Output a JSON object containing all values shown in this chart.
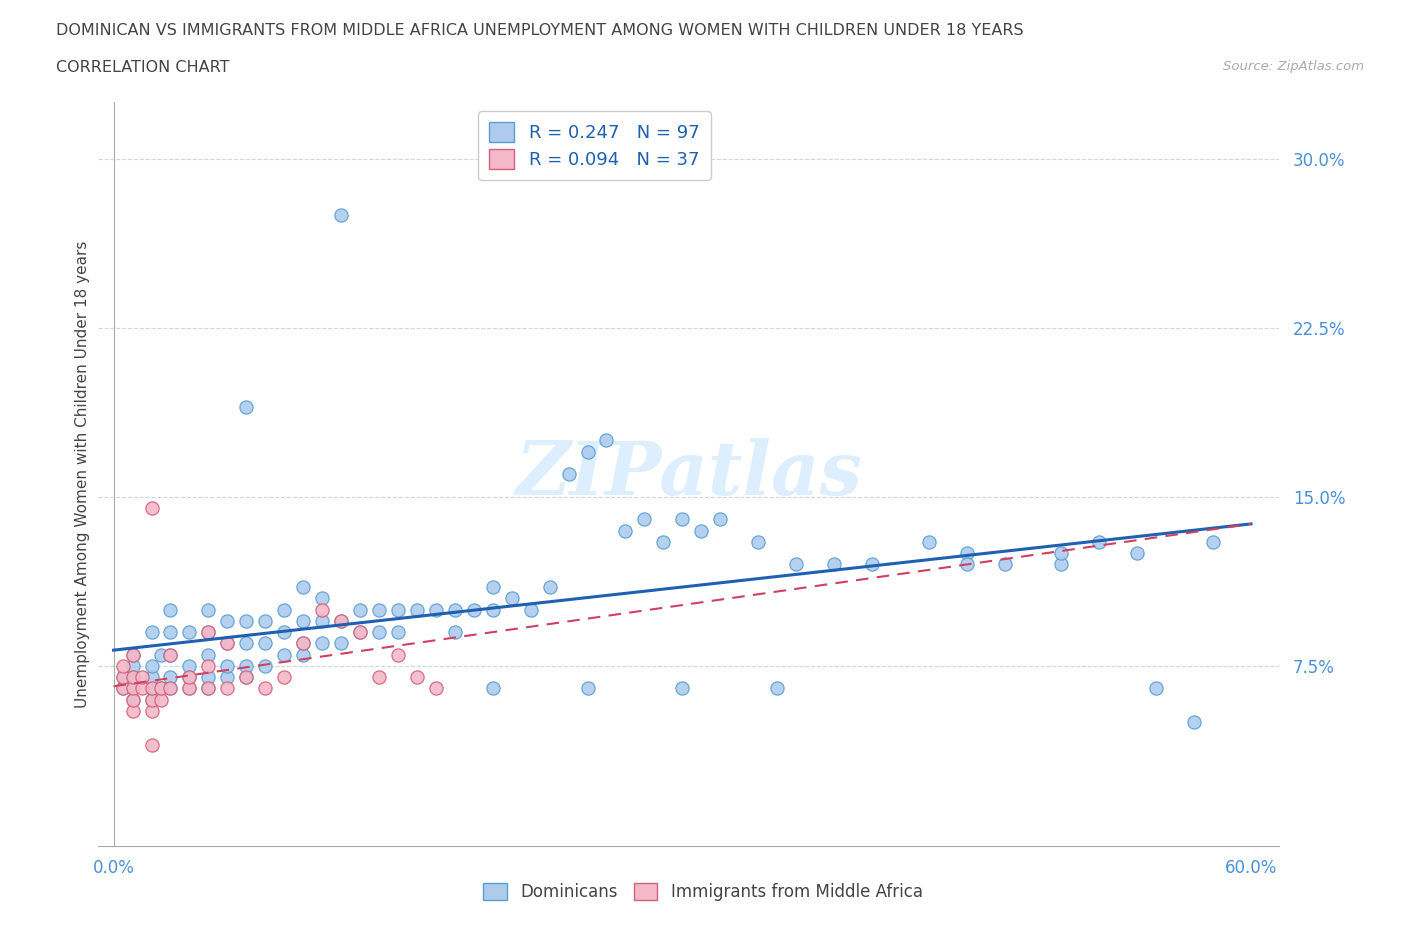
{
  "title_line1": "DOMINICAN VS IMMIGRANTS FROM MIDDLE AFRICA UNEMPLOYMENT AMONG WOMEN WITH CHILDREN UNDER 18 YEARS",
  "title_line2": "CORRELATION CHART",
  "source": "Source: ZipAtlas.com",
  "ylabel": "Unemployment Among Women with Children Under 18 years",
  "yticks": [
    "7.5%",
    "15.0%",
    "22.5%",
    "30.0%"
  ],
  "ytick_values": [
    0.075,
    0.15,
    0.225,
    0.3
  ],
  "xlim": [
    0.0,
    0.6
  ],
  "ylim": [
    0.0,
    0.32
  ],
  "color_dominican_fill": "#aecbee",
  "color_dominican_edge": "#5a9fd4",
  "color_immigrant_fill": "#f4b8c8",
  "color_immigrant_edge": "#d4607a",
  "color_line_dominican": "#2060b0",
  "color_line_immigrant": "#d04060",
  "watermark": "ZIPatlas",
  "dom_x": [
    0.005,
    0.005,
    0.01,
    0.01,
    0.01,
    0.01,
    0.01,
    0.02,
    0.02,
    0.02,
    0.02,
    0.02,
    0.025,
    0.025,
    0.03,
    0.03,
    0.03,
    0.03,
    0.03,
    0.04,
    0.04,
    0.04,
    0.04,
    0.05,
    0.05,
    0.05,
    0.05,
    0.05,
    0.06,
    0.06,
    0.06,
    0.06,
    0.07,
    0.07,
    0.07,
    0.07,
    0.07,
    0.08,
    0.08,
    0.08,
    0.09,
    0.09,
    0.09,
    0.1,
    0.1,
    0.1,
    0.1,
    0.11,
    0.11,
    0.11,
    0.12,
    0.12,
    0.12,
    0.13,
    0.13,
    0.14,
    0.14,
    0.15,
    0.15,
    0.16,
    0.17,
    0.18,
    0.18,
    0.19,
    0.2,
    0.2,
    0.21,
    0.22,
    0.23,
    0.24,
    0.25,
    0.26,
    0.27,
    0.28,
    0.29,
    0.3,
    0.31,
    0.32,
    0.34,
    0.36,
    0.38,
    0.4,
    0.43,
    0.45,
    0.47,
    0.5,
    0.52,
    0.54,
    0.55,
    0.57,
    0.58,
    0.2,
    0.25,
    0.3,
    0.35,
    0.45,
    0.5
  ],
  "dom_y": [
    0.065,
    0.07,
    0.06,
    0.065,
    0.07,
    0.075,
    0.08,
    0.06,
    0.065,
    0.07,
    0.075,
    0.09,
    0.065,
    0.08,
    0.065,
    0.07,
    0.08,
    0.09,
    0.1,
    0.065,
    0.07,
    0.075,
    0.09,
    0.065,
    0.07,
    0.08,
    0.09,
    0.1,
    0.07,
    0.075,
    0.085,
    0.095,
    0.07,
    0.075,
    0.085,
    0.095,
    0.19,
    0.075,
    0.085,
    0.095,
    0.08,
    0.09,
    0.1,
    0.08,
    0.085,
    0.095,
    0.11,
    0.085,
    0.095,
    0.105,
    0.085,
    0.095,
    0.275,
    0.09,
    0.1,
    0.09,
    0.1,
    0.09,
    0.1,
    0.1,
    0.1,
    0.09,
    0.1,
    0.1,
    0.1,
    0.11,
    0.105,
    0.1,
    0.11,
    0.16,
    0.17,
    0.175,
    0.135,
    0.14,
    0.13,
    0.14,
    0.135,
    0.14,
    0.13,
    0.12,
    0.12,
    0.12,
    0.13,
    0.125,
    0.12,
    0.12,
    0.13,
    0.125,
    0.065,
    0.05,
    0.13,
    0.065,
    0.065,
    0.065,
    0.065,
    0.12,
    0.125
  ],
  "imm_x": [
    0.005,
    0.005,
    0.005,
    0.01,
    0.01,
    0.01,
    0.01,
    0.01,
    0.015,
    0.015,
    0.02,
    0.02,
    0.02,
    0.02,
    0.025,
    0.025,
    0.03,
    0.03,
    0.04,
    0.04,
    0.05,
    0.05,
    0.05,
    0.06,
    0.06,
    0.07,
    0.08,
    0.09,
    0.1,
    0.11,
    0.12,
    0.13,
    0.14,
    0.15,
    0.16,
    0.17,
    0.02
  ],
  "imm_y": [
    0.065,
    0.07,
    0.075,
    0.055,
    0.06,
    0.065,
    0.07,
    0.08,
    0.065,
    0.07,
    0.055,
    0.06,
    0.065,
    0.145,
    0.06,
    0.065,
    0.065,
    0.08,
    0.065,
    0.07,
    0.065,
    0.075,
    0.09,
    0.065,
    0.085,
    0.07,
    0.065,
    0.07,
    0.085,
    0.1,
    0.095,
    0.09,
    0.07,
    0.08,
    0.07,
    0.065,
    0.04
  ],
  "line_dom_x0": 0.0,
  "line_dom_x1": 0.6,
  "line_dom_y0": 0.082,
  "line_dom_y1": 0.138,
  "line_imm_x0": 0.0,
  "line_imm_x1": 0.6,
  "line_imm_y0": 0.066,
  "line_imm_y1": 0.138
}
